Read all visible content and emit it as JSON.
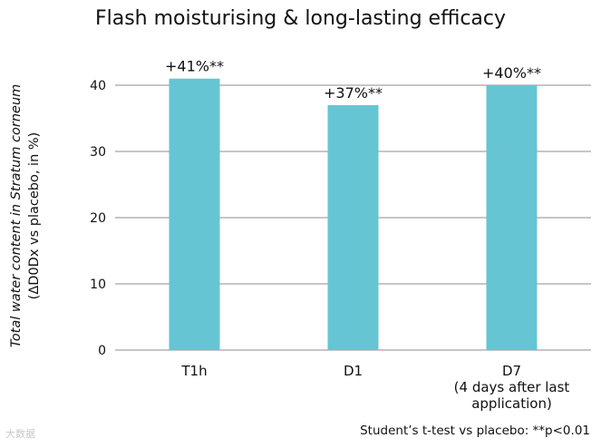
{
  "chart_data": {
    "type": "bar",
    "title": "Flash moisturising & long-lasting efficacy",
    "ylabel_line1": "Total water content in Stratum corneum",
    "ylabel_line2": "(ΔD0Dx vs placebo, in %)",
    "xlabel": "",
    "ylim": [
      0,
      40
    ],
    "yticks": [
      0,
      10,
      20,
      30,
      40
    ],
    "grid": true,
    "bar_color": "#66c5d3",
    "categories": [
      {
        "lines": [
          "T1h"
        ]
      },
      {
        "lines": [
          "D1"
        ]
      },
      {
        "lines": [
          "D7",
          "(4 days after last",
          "application)"
        ]
      }
    ],
    "values": [
      41,
      37,
      40
    ],
    "data_labels": [
      "+41%**",
      "+37%**",
      "+40%**"
    ]
  },
  "footnote": "Student’s t-test vs placebo: **p<0.01",
  "watermark": "大数据"
}
